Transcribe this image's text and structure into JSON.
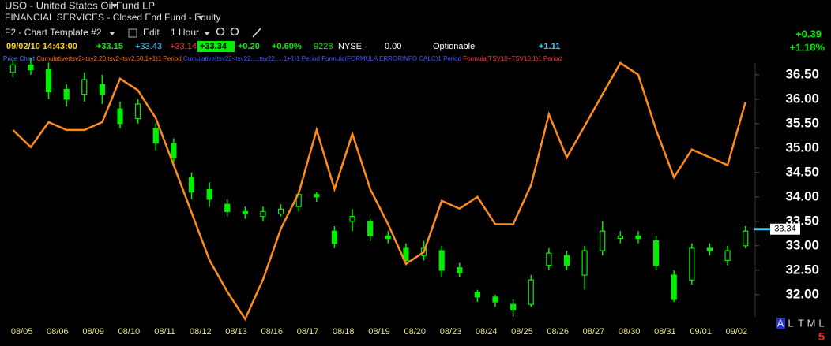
{
  "header": {
    "title": "USO - United States Oil Fund LP",
    "subtitle": "FINANCIAL SERVICES - Closed End Fund - Equity",
    "toolbar": {
      "template": "F2 - Chart Template #2",
      "edit": "Edit",
      "interval": "1 Hour"
    },
    "quote": {
      "datetime": "09/02/10 14:43:00",
      "open": "+33.15",
      "high": "+33.43",
      "low": "+33.14",
      "last": "+33.34",
      "change": "+0.20",
      "change_pct": "+0.60%",
      "volume": "9228",
      "exchange": "NYSE",
      "field": "0.00",
      "options": "Optionable",
      "extra": "+1.11"
    },
    "day_change": "+0.39",
    "day_change_pct": "+1.18%"
  },
  "legend": [
    "Price Chart",
    "Cumulative(tsv2>tsv2.20,tsv2<tsv2.50,1+1)1 Period",
    "Cumulative(tsv22<tsv22.....tsv22.....1+1)1 Period",
    "Formula(FORMULA ERRORINFO CALC)1 Period",
    "Formula(TSV10+TSV10.1)1 Period"
  ],
  "chart_data": {
    "type": "candlestick",
    "categories": [
      "08/05",
      null,
      "08/06",
      null,
      "08/09",
      null,
      "08/10",
      null,
      "08/11",
      null,
      "08/12",
      null,
      "08/13",
      null,
      "08/16",
      null,
      "08/17",
      null,
      "08/18",
      null,
      "08/19",
      null,
      "08/20",
      null,
      "08/23",
      null,
      "08/24",
      null,
      "08/25",
      null,
      "08/26",
      null,
      "08/27",
      null,
      "08/30",
      null,
      "08/31",
      null,
      "09/01",
      null,
      "09/02",
      null
    ],
    "open": [
      36.55,
      36.7,
      36.6,
      36.2,
      36.1,
      36.3,
      35.8,
      35.6,
      35.4,
      35.1,
      34.4,
      34.15,
      33.85,
      33.7,
      33.6,
      33.65,
      33.8,
      34.05,
      33.3,
      33.5,
      33.5,
      33.2,
      32.95,
      32.8,
      32.9,
      32.55,
      32.05,
      31.95,
      31.8,
      31.8,
      32.6,
      32.8,
      32.4,
      32.9,
      33.15,
      33.2,
      33.1,
      32.4,
      32.3,
      32.95,
      32.7,
      33.0
    ],
    "high": [
      36.8,
      36.85,
      36.75,
      36.3,
      36.55,
      36.5,
      35.95,
      36.0,
      35.5,
      35.2,
      34.5,
      34.3,
      33.95,
      33.8,
      33.8,
      33.85,
      34.15,
      34.1,
      33.4,
      33.75,
      33.55,
      33.3,
      33.05,
      33.1,
      33.0,
      32.65,
      32.1,
      32.0,
      31.9,
      32.4,
      32.95,
      32.9,
      33.0,
      33.5,
      33.3,
      33.3,
      33.2,
      32.5,
      33.05,
      33.05,
      33.0,
      33.4
    ],
    "low": [
      36.45,
      36.5,
      36.0,
      35.85,
      35.95,
      35.9,
      35.4,
      35.5,
      34.95,
      34.7,
      33.95,
      33.8,
      33.6,
      33.55,
      33.5,
      33.6,
      33.7,
      33.9,
      32.95,
      33.3,
      33.1,
      33.05,
      32.6,
      32.7,
      32.35,
      32.35,
      31.85,
      31.75,
      31.55,
      31.75,
      32.5,
      32.5,
      32.1,
      32.8,
      33.05,
      33.05,
      32.5,
      31.85,
      32.2,
      32.8,
      32.6,
      32.95
    ],
    "close": [
      36.7,
      36.6,
      36.15,
      36.0,
      36.4,
      36.1,
      35.5,
      35.9,
      35.1,
      34.8,
      34.1,
      33.95,
      33.7,
      33.65,
      33.7,
      33.75,
      34.05,
      34.0,
      33.05,
      33.6,
      33.2,
      33.15,
      32.7,
      32.95,
      32.5,
      32.45,
      31.95,
      31.85,
      31.7,
      32.3,
      32.85,
      32.6,
      32.9,
      33.3,
      33.2,
      33.15,
      32.6,
      31.9,
      32.95,
      32.9,
      32.9,
      33.3
    ],
    "color": "#00ee00",
    "overlay": {
      "color": "#ff8c1a",
      "values": [
        35.37,
        35.02,
        35.53,
        35.37,
        35.37,
        35.53,
        36.42,
        36.18,
        35.61,
        34.65,
        33.68,
        32.71,
        32.06,
        31.5,
        32.31,
        33.35,
        34.08,
        35.37,
        34.16,
        35.29,
        34.16,
        33.44,
        32.63,
        32.87,
        33.92,
        33.76,
        34.0,
        33.44,
        33.44,
        34.24,
        35.69,
        34.81,
        35.45,
        36.1,
        36.74,
        36.5,
        35.37,
        34.4,
        34.97,
        34.81,
        34.65,
        35.94
      ]
    },
    "last_price": 33.34,
    "last_price_color": "#33ccff",
    "ylim": [
      31.61,
      36.82
    ],
    "yticks": [
      {
        "value": 32,
        "label": "32.00"
      },
      {
        "value": 32.5,
        "label": "32.50"
      },
      {
        "value": 33,
        "label": "33.00"
      },
      {
        "value": 33.5,
        "label": "33.50"
      },
      {
        "value": 34,
        "label": "34.00"
      },
      {
        "value": 34.5,
        "label": "34.50"
      },
      {
        "value": 35,
        "label": "35.00"
      },
      {
        "value": 35.5,
        "label": "35.50"
      },
      {
        "value": 36,
        "label": "36.00"
      },
      {
        "value": 36.5,
        "label": "36.50"
      }
    ],
    "grid": false
  },
  "footer": {
    "buttons": [
      "A",
      "L",
      "T",
      "M",
      "L"
    ],
    "badge": "5"
  }
}
